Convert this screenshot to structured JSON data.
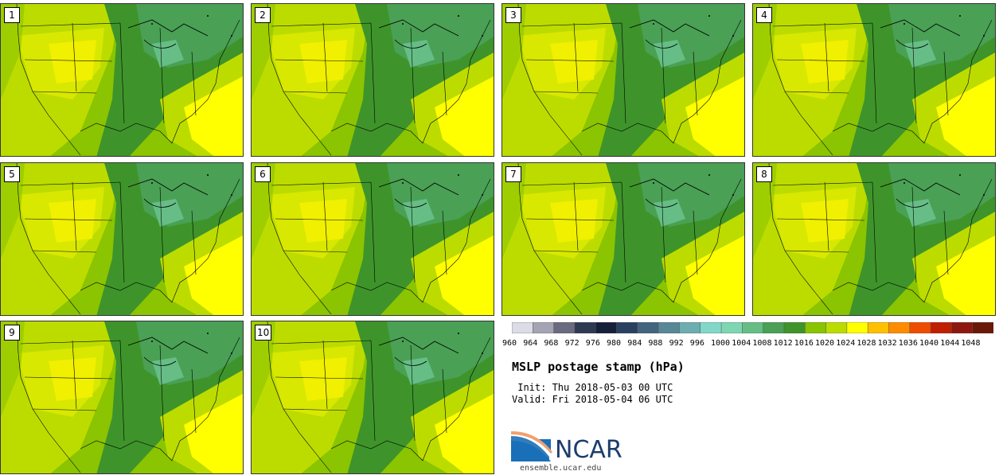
{
  "panels": [
    {
      "number": "1"
    },
    {
      "number": "2"
    },
    {
      "number": "3"
    },
    {
      "number": "4"
    },
    {
      "number": "5"
    },
    {
      "number": "6"
    },
    {
      "number": "7"
    },
    {
      "number": "8"
    },
    {
      "number": "9"
    },
    {
      "number": "10"
    }
  ],
  "colorbar": {
    "levels": [
      "960",
      "964",
      "968",
      "972",
      "976",
      "980",
      "984",
      "988",
      "992",
      "996",
      "1000",
      "1004",
      "1008",
      "1012",
      "1016",
      "1020",
      "1024",
      "1028",
      "1032",
      "1036",
      "1040",
      "1044",
      "1048"
    ],
    "colors": [
      "#dcdce6",
      "#a4a4b4",
      "#6a6a80",
      "#2e3a52",
      "#16203a",
      "#2a4060",
      "#44647e",
      "#588896",
      "#6cadb0",
      "#82d8c8",
      "#7ed6b2",
      "#66be86",
      "#4aa054",
      "#3e942a",
      "#88c400",
      "#bcdc00",
      "#ffff00",
      "#ffc000",
      "#ff8c00",
      "#ee4c00",
      "#c02000",
      "#8e1810",
      "#6a1808"
    ]
  },
  "title": "MSLP postage stamp (hPa)",
  "init_line": " Init: Thu 2018-05-03 00 UTC",
  "valid_line": "Valid: Fri 2018-05-04 06 UTC",
  "logo_text": "NCAR",
  "website": "ensemble.ucar.edu"
}
